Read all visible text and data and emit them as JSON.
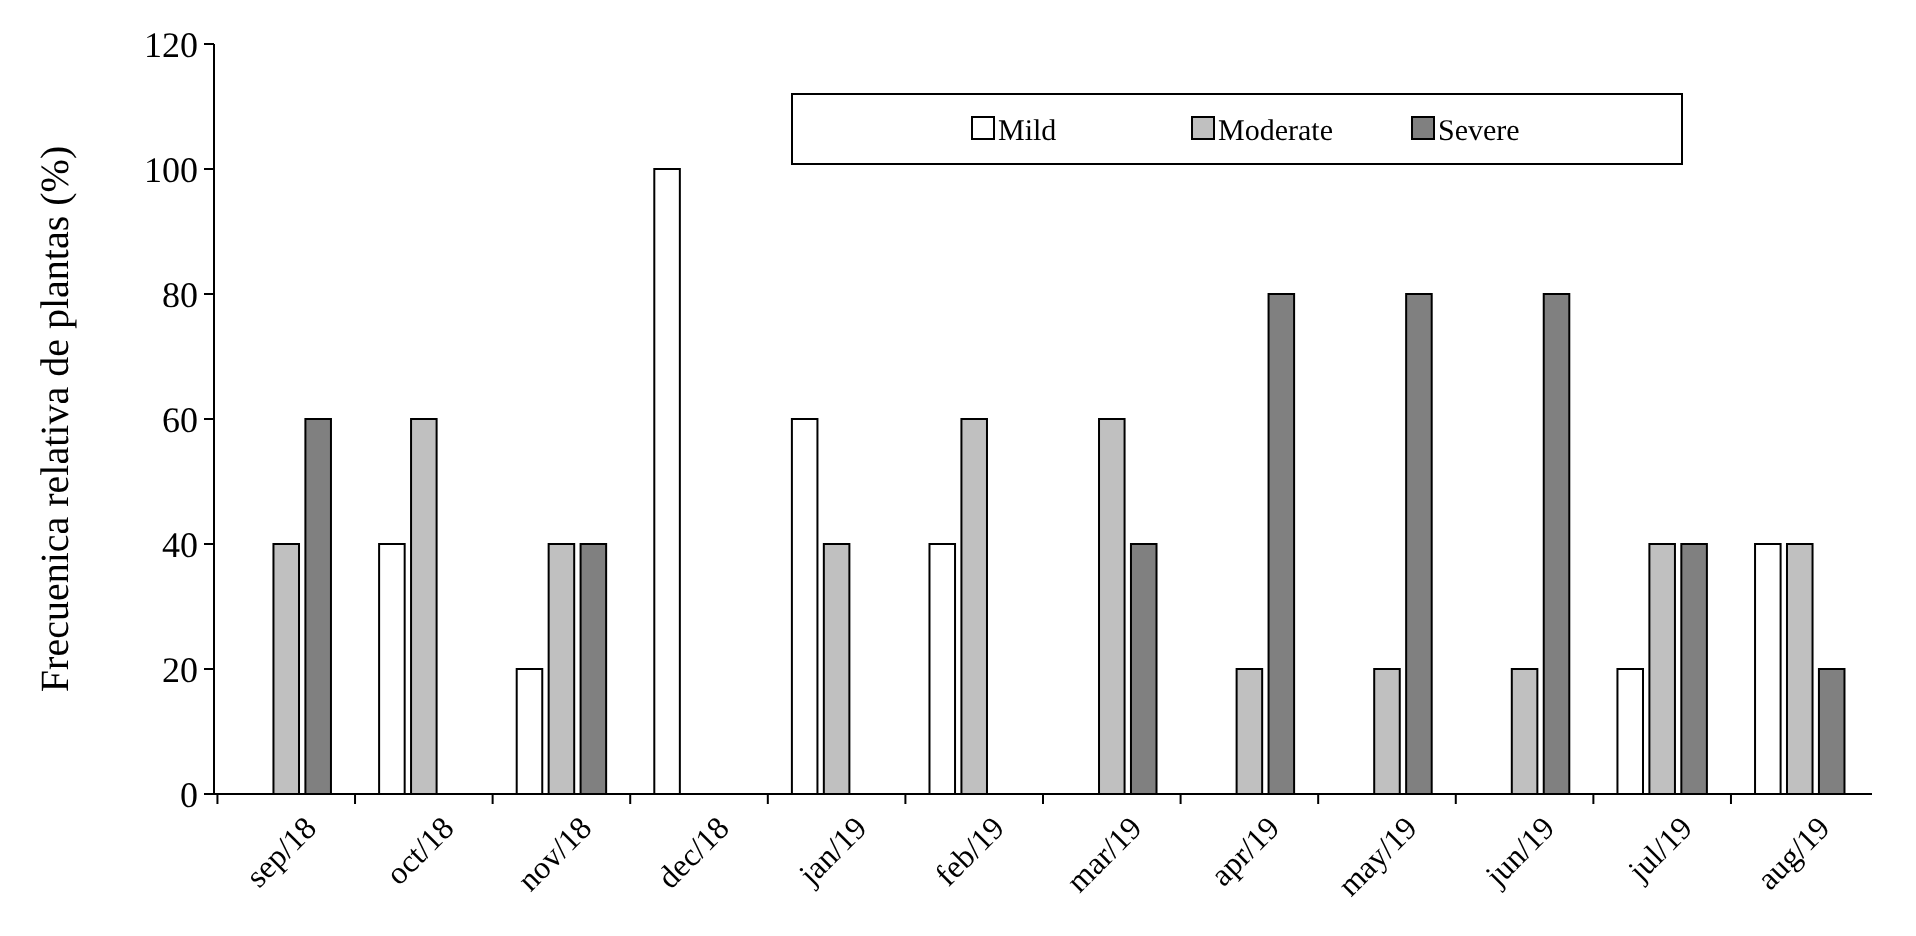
{
  "chart_data": {
    "type": "bar",
    "ylabel": "Frecuenica relativa de plantas (%)",
    "categories": [
      "sep/18",
      "oct/18",
      "nov/18",
      "dec/18",
      "jan/19",
      "feb/19",
      "mar/19",
      "apr/19",
      "may/19",
      "jun/19",
      "jul/19",
      "aug/19"
    ],
    "series": [
      {
        "name": "Mild",
        "color": "#ffffff",
        "values": [
          null,
          40,
          20,
          100,
          60,
          40,
          null,
          null,
          null,
          null,
          20,
          40
        ]
      },
      {
        "name": "Moderate",
        "color": "#c0c0c0",
        "values": [
          40,
          60,
          40,
          null,
          40,
          60,
          60,
          20,
          20,
          20,
          40,
          40
        ]
      },
      {
        "name": "Severe",
        "color": "#808080",
        "values": [
          60,
          null,
          40,
          null,
          null,
          null,
          40,
          80,
          80,
          80,
          40,
          20
        ]
      }
    ],
    "ylim": [
      0,
      120
    ],
    "yticks": [
      0,
      20,
      40,
      60,
      80,
      100,
      120
    ],
    "grid": false,
    "legend": "top right"
  }
}
